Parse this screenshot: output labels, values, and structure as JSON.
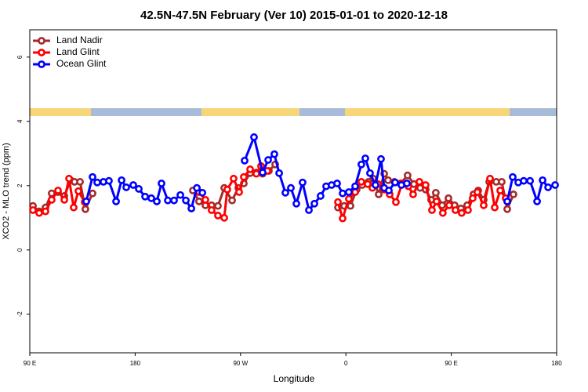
{
  "chart_data": {
    "type": "line",
    "title": "42.5N-47.5N February (Ver 10)   2015-01-01 to 2020-12-18",
    "x_label": "Longitude",
    "y_label": "XCO2 - MLO trend (ppm)",
    "xlim": [
      90,
      540
    ],
    "xticks": [
      {
        "value": 90,
        "label": "90 E"
      },
      {
        "value": 180,
        "label": "180"
      },
      {
        "value": 270,
        "label": "90 W"
      },
      {
        "value": 360,
        "label": "0"
      },
      {
        "value": 450,
        "label": "90 E"
      },
      {
        "value": 540,
        "label": "180"
      }
    ],
    "ylim": [
      -3.2,
      6.85
    ],
    "yticks": [
      -2,
      0,
      2,
      4,
      6
    ],
    "grid": false,
    "legend": "top-left",
    "series": [
      {
        "name": "Land Nadir",
        "color": "#a52a2a",
        "x": [
          92.7,
          98,
          103.4,
          108.7,
          114.1,
          119.5,
          124.8,
          128.2,
          132.9,
          137.5,
          143.6,
          null,
          229.3,
          234.6,
          240,
          245.3,
          250.7,
          256.1,
          262.8,
          268.1,
          272.8,
          278.2,
          283.5,
          288.9,
          294.2,
          299.6,
          null,
          353.2,
          358.5,
          363.9,
          369.2,
          373.9,
          379.3,
          383.3,
          388.0,
          392.7,
          396.0,
          401.4,
          406.7,
          412.7,
          418.1,
          423.4,
          428.1,
          432.8,
          436.8,
          442.2,
          447.6,
          452.9,
          458.3,
          463.6,
          469.0,
          473.0,
          477.7,
          482.4,
          488.4,
          493.1,
          497.8,
          503.1
        ],
        "values": [
          1.37,
          1.2,
          1.32,
          1.76,
          1.8,
          1.68,
          2.17,
          2.12,
          2.12,
          1.27,
          1.76,
          null,
          1.85,
          1.51,
          1.39,
          1.39,
          1.37,
          1.93,
          1.54,
          1.93,
          2.07,
          2.39,
          2.41,
          2.37,
          2.46,
          2.66,
          null,
          1.32,
          1.37,
          1.37,
          1.88,
          2.02,
          2.12,
          2.22,
          1.73,
          2.37,
          2.17,
          2.12,
          2.07,
          2.32,
          2.05,
          1.93,
          1.88,
          1.56,
          1.78,
          1.39,
          1.61,
          1.39,
          1.29,
          1.39,
          1.73,
          1.85,
          1.56,
          2.12,
          2.12,
          2.12,
          1.27,
          1.73
        ]
      },
      {
        "name": "Land Glint",
        "color": "#ff0000",
        "x": [
          92.7,
          98,
          103.4,
          108.7,
          114.1,
          119.5,
          123.5,
          127.5,
          131.5,
          136.9,
          null,
          234.6,
          240,
          245.3,
          250.7,
          256.1,
          258.7,
          264.1,
          268.8,
          272.8,
          278.2,
          283.5,
          287.5,
          292.9,
          null,
          353.2,
          357.2,
          362.5,
          367.9,
          373.2,
          378.6,
          382.6,
          387.3,
          392.7,
          397.4,
          402.7,
          408.1,
          413.4,
          417.4,
          422.8,
          428.1,
          433.5,
          437.5,
          442.8,
          448.2,
          453.6,
          458.9,
          464.3,
          468.3,
          472.3,
          477.7,
          483.1,
          487.1,
          491.8,
          496.5
        ],
        "values": [
          1.24,
          1.15,
          1.2,
          1.56,
          1.85,
          1.56,
          2.22,
          1.32,
          1.83,
          1.49,
          null,
          1.8,
          1.56,
          1.24,
          1.07,
          1.0,
          1.88,
          2.22,
          1.8,
          2.27,
          2.51,
          2.37,
          2.61,
          2.46,
          null,
          1.49,
          0.98,
          1.59,
          1.8,
          2.12,
          2.05,
          1.93,
          2.05,
          1.88,
          1.73,
          1.49,
          2.07,
          1.98,
          1.73,
          2.12,
          2.02,
          1.24,
          1.51,
          1.15,
          1.39,
          1.24,
          1.15,
          1.24,
          1.61,
          1.8,
          1.39,
          2.22,
          1.32,
          1.85,
          1.61
        ]
      },
      {
        "name": "Ocean Glint",
        "color": "#0000ff",
        "x": [
          138.2,
          143.6,
          147.6,
          152.9,
          157.6,
          163.7,
          168.4,
          172.4,
          178.4,
          183.1,
          188.5,
          193.8,
          198.5,
          202.5,
          207.9,
          213.2,
          218.6,
          223.3,
          228,
          232.7,
          237.4,
          null,
          273.5,
          281.5,
          288.9,
          293.6,
          298.9,
          303,
          308.3,
          313,
          317.7,
          323,
          328.4,
          333.1,
          338.4,
          343.1,
          347.8,
          352.5,
          357.2,
          362.5,
          367.9,
          373.2,
          376.6,
          380.6,
          385.3,
          390,
          392.7,
          396.7,
          402,
          407.4,
          412.1,
          null,
          497.8,
          502.5,
          507.2,
          511.9,
          517.3,
          523.3,
          528,
          532.7,
          538.7
        ],
        "values": [
          1.51,
          2.27,
          2.1,
          2.12,
          2.15,
          1.51,
          2.17,
          1.95,
          2.02,
          1.9,
          1.66,
          1.61,
          1.51,
          2.07,
          1.54,
          1.54,
          1.71,
          1.54,
          1.29,
          1.93,
          1.78,
          null,
          2.78,
          3.51,
          2.41,
          2.8,
          2.98,
          2.39,
          1.78,
          1.93,
          1.44,
          2.1,
          1.24,
          1.44,
          1.68,
          1.98,
          2.02,
          2.07,
          1.76,
          1.8,
          1.98,
          2.66,
          2.85,
          2.39,
          2.02,
          2.83,
          1.93,
          1.85,
          2.1,
          2.02,
          2.07,
          null,
          1.51,
          2.27,
          2.1,
          2.15,
          2.15,
          1.51,
          2.17,
          1.95,
          2.02
        ]
      }
    ]
  }
}
